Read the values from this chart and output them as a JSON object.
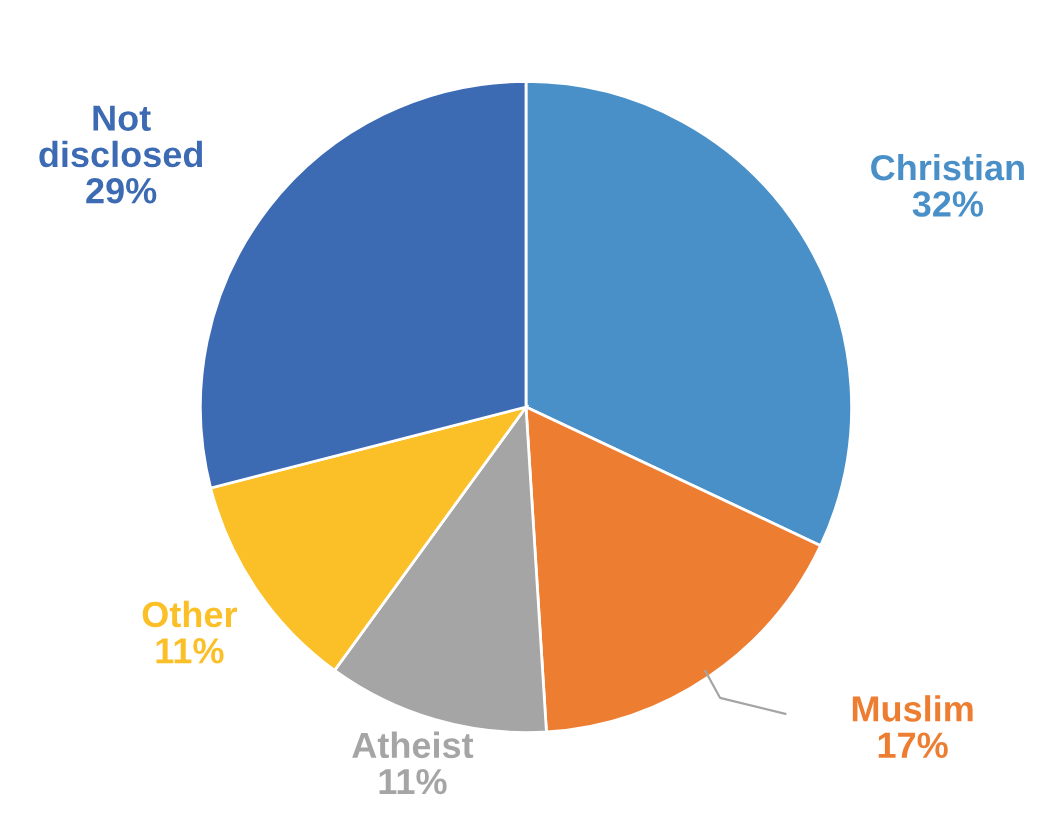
{
  "chart_data": {
    "type": "pie",
    "categories": [
      "Christian",
      "Muslim",
      "Atheist",
      "Other",
      "Not disclosed"
    ],
    "values": [
      32,
      17,
      11,
      11,
      29
    ],
    "value_labels": [
      "32%",
      "17%",
      "11%",
      "11%",
      "29%"
    ],
    "colors": [
      "#4a90c8",
      "#ed7d31",
      "#a5a5a5",
      "#fbbf28",
      "#3d6bb3"
    ],
    "legend": false
  }
}
